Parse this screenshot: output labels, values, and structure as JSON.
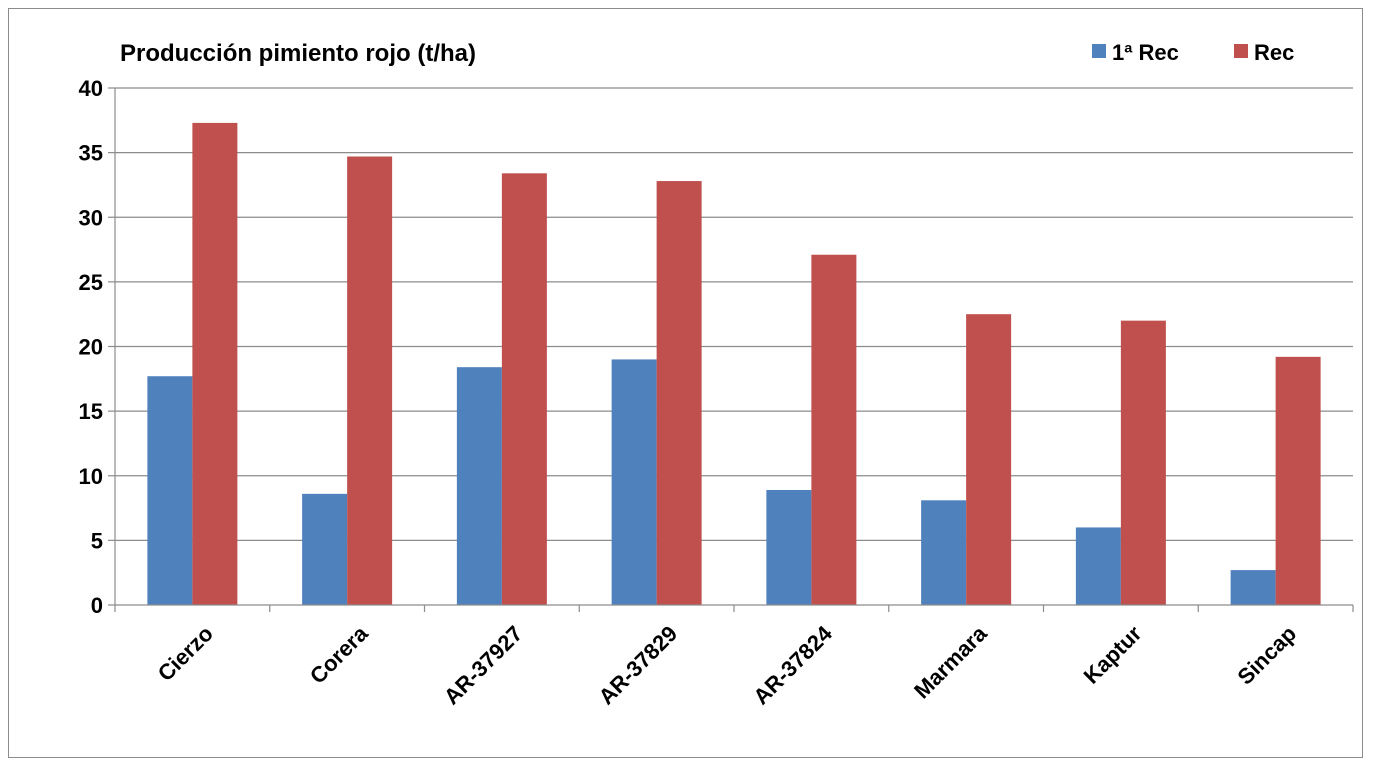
{
  "chart_data": {
    "type": "bar",
    "title": "Producción pimiento rojo (t/ha)",
    "xlabel": "",
    "ylabel": "",
    "categories": [
      "Cierzo",
      "Corera",
      "AR-37927",
      "AR-37829",
      "AR-37824",
      "Marmara",
      "Kaptur",
      "Sincap"
    ],
    "series": [
      {
        "name": "1ª Rec",
        "color": "#4f81bd",
        "values": [
          17.7,
          8.6,
          18.4,
          19.0,
          8.9,
          8.1,
          6.0,
          2.7
        ]
      },
      {
        "name": "Rec",
        "color": "#c0504d",
        "values": [
          37.3,
          34.7,
          33.4,
          32.8,
          27.1,
          22.5,
          22.0,
          19.2
        ]
      }
    ],
    "ylim": [
      0,
      40
    ],
    "yticks": [
      "0",
      "5",
      "10",
      "15",
      "20",
      "25",
      "30",
      "35",
      "40"
    ],
    "grid": true,
    "legend_position": "top-right"
  }
}
